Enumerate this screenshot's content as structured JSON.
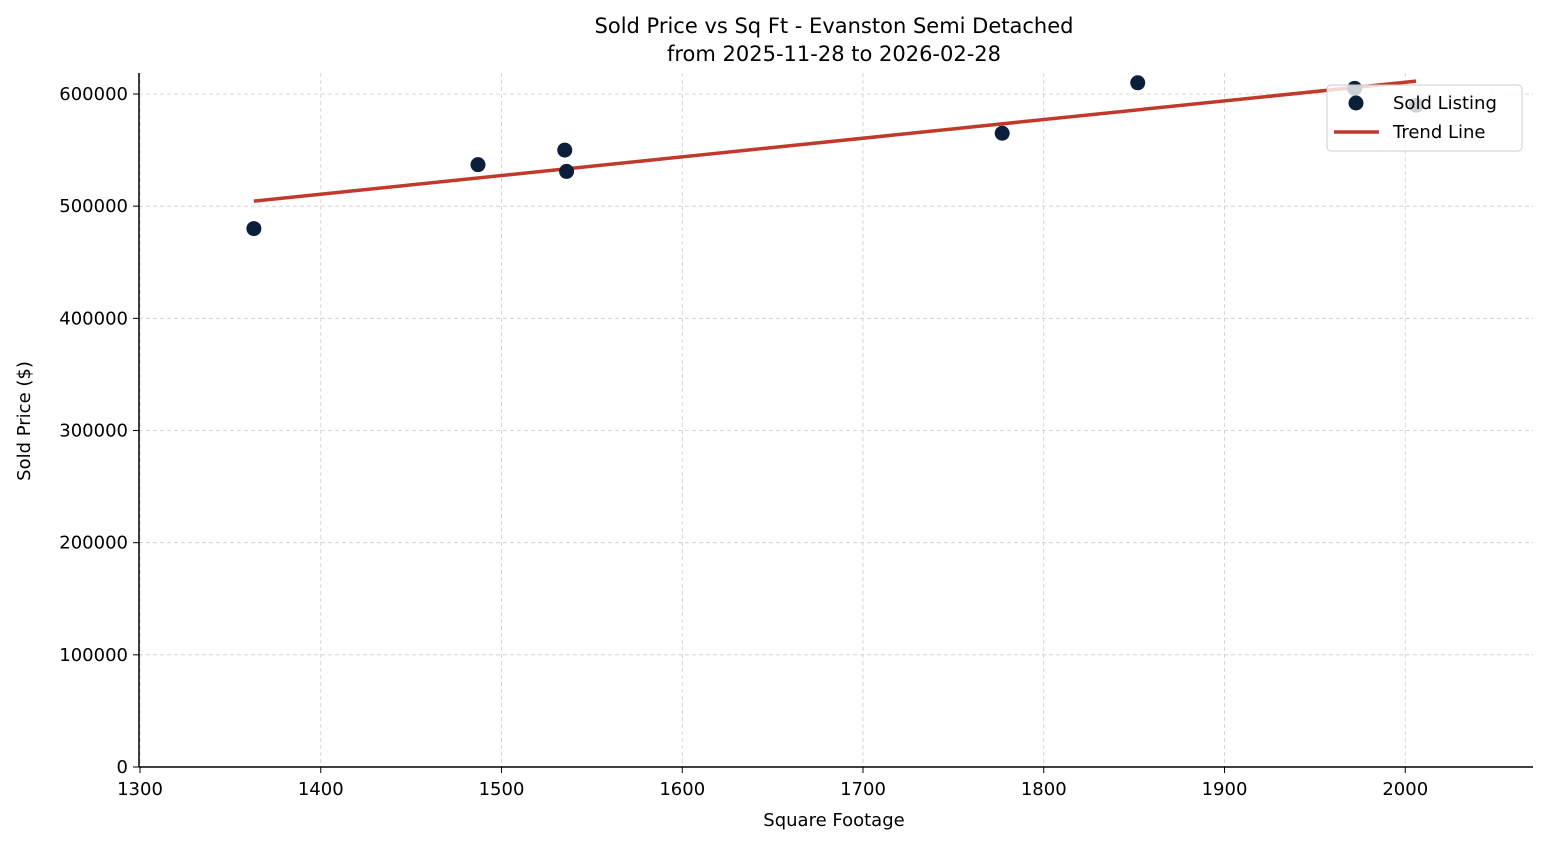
{
  "chart_data": {
    "type": "scatter",
    "title": "Sold Price vs Sq Ft - Evanston Semi Detached",
    "subtitle": "from 2025-11-28 to 2026-02-28",
    "xlabel": "Square Footage",
    "ylabel": "Sold Price ($)",
    "xlim": [
      1295,
      2070
    ],
    "ylim": [
      0,
      618000
    ],
    "xticks": [
      1300,
      1400,
      1500,
      1600,
      1700,
      1800,
      1900,
      2000
    ],
    "yticks": [
      0,
      100000,
      200000,
      300000,
      400000,
      500000,
      600000
    ],
    "grid": true,
    "legend_placement": "top-right",
    "series": [
      {
        "name": "Sold Listing",
        "kind": "scatter",
        "color": "#0b1f3a",
        "points": [
          {
            "x": 1363,
            "y": 480000
          },
          {
            "x": 1487,
            "y": 537000
          },
          {
            "x": 1535,
            "y": 550000
          },
          {
            "x": 1536,
            "y": 531000
          },
          {
            "x": 1777,
            "y": 565000
          },
          {
            "x": 1852,
            "y": 610000
          },
          {
            "x": 1972,
            "y": 605000
          },
          {
            "x": 2006,
            "y": 590000
          }
        ]
      },
      {
        "name": "Trend Line",
        "kind": "line",
        "color": "#c0392b",
        "points": [
          {
            "x": 1363,
            "y": 504500
          },
          {
            "x": 2006,
            "y": 611500
          }
        ]
      }
    ]
  }
}
